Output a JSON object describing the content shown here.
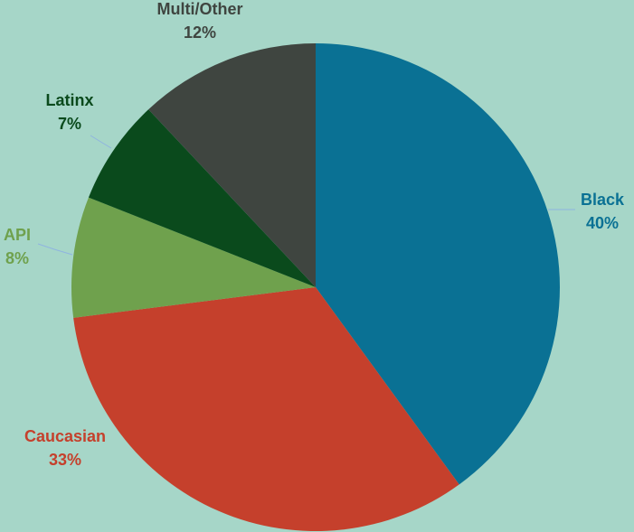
{
  "chart_data": {
    "type": "pie",
    "title": "",
    "start_angle_deg": 0,
    "direction": "clockwise",
    "slices": [
      {
        "label": "Black",
        "value": 40,
        "display": "40%",
        "color": "#0a7194",
        "label_color": "#0a7194"
      },
      {
        "label": "Caucasian",
        "value": 33,
        "display": "33%",
        "color": "#c5402c",
        "label_color": "#c5402c"
      },
      {
        "label": "API",
        "value": 8,
        "display": "8%",
        "color": "#6fa14d",
        "label_color": "#6fa14d"
      },
      {
        "label": "Latinx",
        "value": 7,
        "display": "7%",
        "color": "#0a4a1c",
        "label_color": "#0a4a1c"
      },
      {
        "label": "Multi/Other",
        "value": 12,
        "display": "12%",
        "color": "#3f4540",
        "label_color": "#3f4540"
      }
    ],
    "leader_line_color": "#8fb4e0",
    "background": "#a6d6c8"
  }
}
